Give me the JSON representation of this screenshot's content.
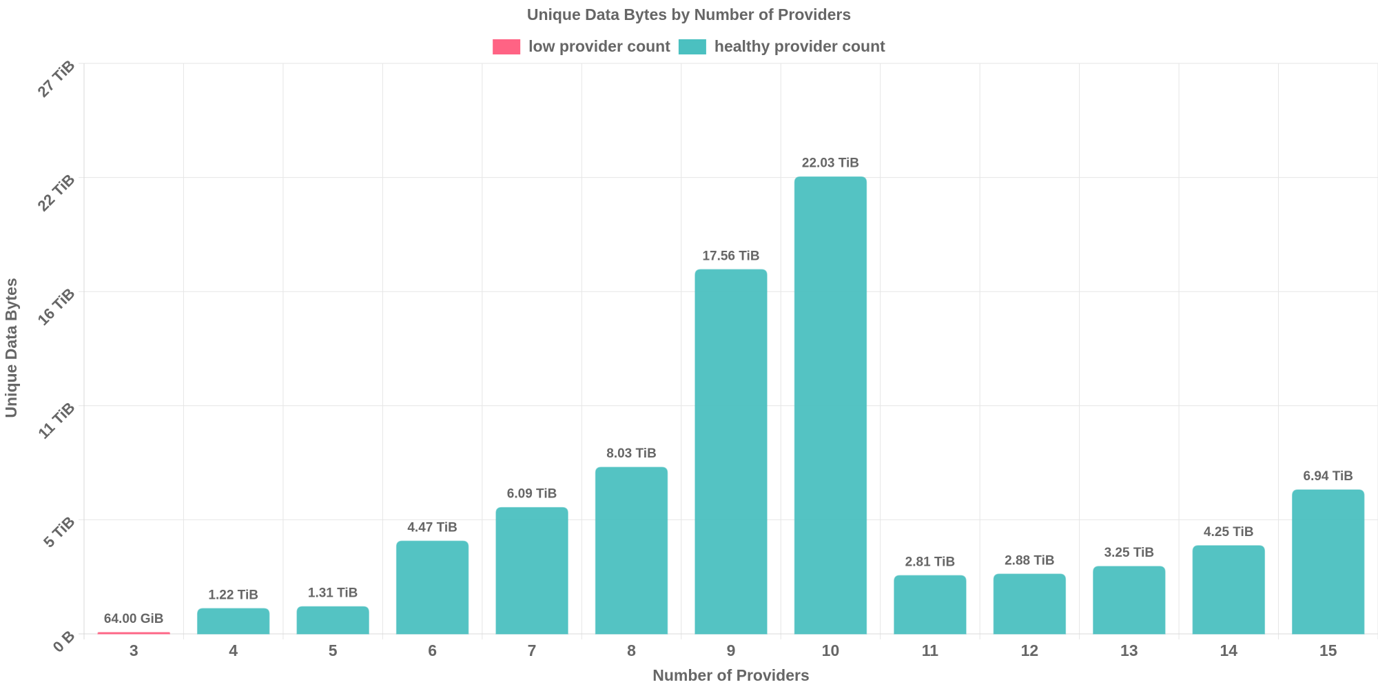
{
  "chart_data": {
    "type": "bar",
    "title": "Unique Data Bytes by Number of Providers",
    "xlabel": "Number of Providers",
    "ylabel": "Unique Data Bytes",
    "categories": [
      "3",
      "4",
      "5",
      "6",
      "7",
      "8",
      "9",
      "10",
      "11",
      "12",
      "13",
      "14",
      "15"
    ],
    "values": [
      0.0625,
      1.22,
      1.31,
      4.47,
      6.09,
      8.03,
      17.56,
      22.03,
      2.81,
      2.88,
      3.25,
      4.25,
      6.94
    ],
    "value_unit": "TiB",
    "data_labels": [
      "64.00 GiB",
      "1.22 TiB",
      "1.31 TiB",
      "4.47 TiB",
      "6.09 TiB",
      "8.03 TiB",
      "17.56 TiB",
      "22.03 TiB",
      "2.81 TiB",
      "2.88 TiB",
      "3.25 TiB",
      "4.25 TiB",
      "6.94 TiB"
    ],
    "bar_series": [
      "low",
      "healthy",
      "healthy",
      "healthy",
      "healthy",
      "healthy",
      "healthy",
      "healthy",
      "healthy",
      "healthy",
      "healthy",
      "healthy",
      "healthy"
    ],
    "series": [
      {
        "key": "low",
        "name": "low provider count",
        "color": "#ff6384"
      },
      {
        "key": "healthy",
        "name": "healthy provider count",
        "color": "#4bc0c0"
      }
    ],
    "y_ticks": [
      {
        "value": 0,
        "label": "0 B"
      },
      {
        "value": 5.5,
        "label": "5 TiB"
      },
      {
        "value": 11,
        "label": "11 TiB"
      },
      {
        "value": 16.5,
        "label": "16 TiB"
      },
      {
        "value": 22,
        "label": "22 TiB"
      },
      {
        "value": 27.5,
        "label": "27 TiB"
      }
    ],
    "ylim": [
      0,
      27.5
    ],
    "grid": true,
    "legend_position": "top"
  }
}
